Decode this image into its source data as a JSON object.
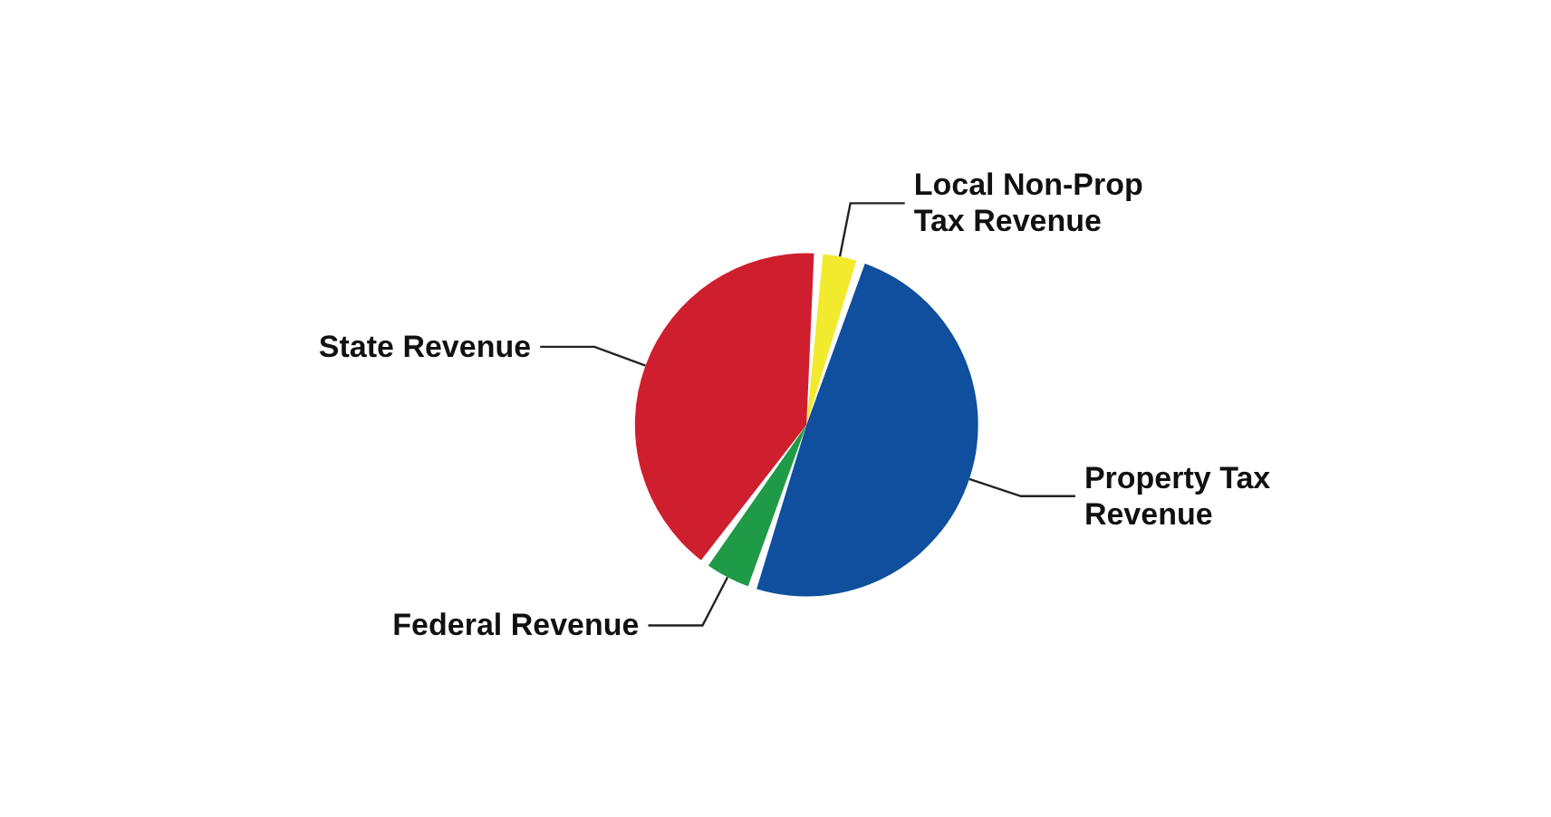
{
  "chart_data": {
    "type": "pie",
    "categories": [
      "Local Non-Prop Tax Revenue",
      "Property Tax Revenue",
      "Federal Revenue",
      "State Revenue"
    ],
    "values": [
      4,
      50,
      5,
      41
    ],
    "colors": [
      "#f2ea2c",
      "#0f4f9e",
      "#1f9a47",
      "#cf1f2e"
    ],
    "legend": false
  }
}
